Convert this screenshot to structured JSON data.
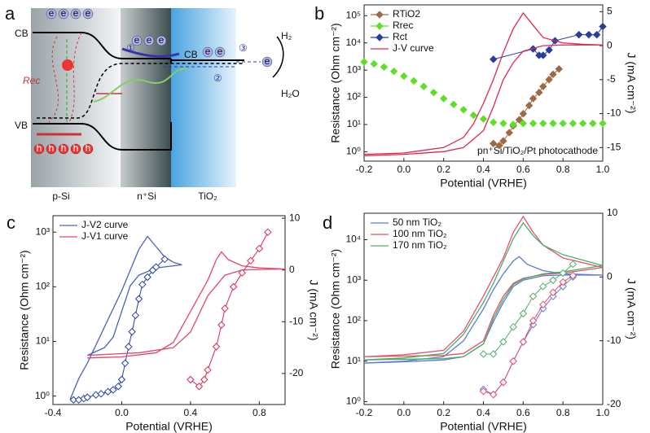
{
  "panel_a": {
    "letter": "a",
    "cb": "CB",
    "vb": "VB",
    "cb_tio2": "CB",
    "rec": "Rec",
    "h2": "H₂",
    "h2o": "H₂O",
    "layers": [
      "p-Si",
      "n⁺Si",
      "TiO₂"
    ],
    "steps": [
      "①",
      "②",
      "③"
    ],
    "electron": "e",
    "hole": "h"
  },
  "chart_data": [
    {
      "type": "line",
      "panel": "b",
      "xlabel": "Potential (VRHE)",
      "ylabel": "Resistance (Ohm cm⁻²)",
      "y2label": "J (mA cm⁻²)",
      "annotation": "pn⁺Si/TiO₂/Pt photocathode",
      "ylog": true,
      "filled_markers": true,
      "xlim": [
        -0.2,
        1.0
      ],
      "xticks": [
        -0.2,
        {
          "value": 0,
          "label": "0.0"
        },
        0.2,
        0.4,
        0.6,
        0.8,
        {
          "value": 1,
          "label": "1.0"
        }
      ],
      "ylim": [
        0.45,
        250000
      ],
      "yticks": [
        {
          "value": 1,
          "label": "10⁰"
        },
        {
          "value": 10,
          "label": "10¹"
        },
        {
          "value": 100,
          "label": "10²"
        },
        {
          "value": 1000,
          "label": "10³"
        },
        {
          "value": 10000,
          "label": "10⁴"
        },
        {
          "value": 100000,
          "label": "10⁵"
        }
      ],
      "y2lim": [
        -17,
        6
      ],
      "y2ticks": [
        5,
        0,
        -5,
        -10,
        -15
      ],
      "series": [
        {
          "name": "RTiO2",
          "color": "#9c6b45",
          "marker": "diamond",
          "x": [
            0.45,
            0.48,
            0.5,
            0.53,
            0.55,
            0.58,
            0.6,
            0.63,
            0.65,
            0.68,
            0.7,
            0.73,
            0.75,
            0.78
          ],
          "values": [
            2,
            1.7,
            2.5,
            5,
            9,
            15,
            25,
            50,
            90,
            150,
            250,
            450,
            700,
            1100
          ]
        },
        {
          "name": "Rrec",
          "color": "#5ee02a",
          "marker": "diamond",
          "line": false,
          "x": [
            -0.2,
            -0.15,
            -0.1,
            -0.05,
            0,
            0.05,
            0.1,
            0.15,
            0.2,
            0.25,
            0.3,
            0.35,
            0.4,
            0.45,
            0.5,
            0.55,
            0.6,
            0.65,
            0.7,
            0.75,
            0.8,
            0.85,
            0.9,
            0.95,
            1.0
          ],
          "values": [
            2000,
            1700,
            1300,
            900,
            600,
            400,
            250,
            150,
            90,
            55,
            35,
            22,
            16,
            12,
            11,
            10,
            11,
            11,
            11,
            11,
            11,
            11,
            11,
            11,
            11
          ]
        },
        {
          "name": "Rct",
          "color": "#2b3d9c",
          "marker": "diamond",
          "x": [
            0.45,
            0.65,
            0.68,
            0.7,
            0.73,
            0.76,
            0.88,
            0.93,
            0.97,
            1.0
          ],
          "values": [
            2500,
            6000,
            3500,
            3500,
            5500,
            12000,
            20000,
            20000,
            20000,
            40000
          ]
        },
        {
          "name": "J-V curve",
          "color": "#e0284f",
          "axis": "y2",
          "x": [
            -0.2,
            0,
            0.2,
            0.3,
            0.35,
            0.4,
            0.45,
            0.5,
            0.55,
            0.6,
            0.65,
            0.7,
            0.8,
            0.9,
            1.0,
            0.9,
            0.8,
            0.7,
            0.6,
            0.55,
            0.5,
            0.45,
            0.4,
            0.3,
            0.2,
            0,
            -0.2
          ],
          "values": [
            -16,
            -15.8,
            -15,
            -13.5,
            -11.5,
            -8.5,
            -5,
            -1,
            2.5,
            4.8,
            3,
            1.2,
            0.4,
            0.2,
            0.1,
            0.1,
            0.1,
            0,
            -0.8,
            -2.5,
            -5,
            -9,
            -12.5,
            -15,
            -15.6,
            -16,
            -16.2
          ]
        }
      ]
    },
    {
      "type": "line",
      "panel": "c",
      "xlabel": "Potential (VRHE)",
      "ylabel": "Resistance (Ohm cm⁻²)",
      "y2label": "J (mA cm⁻²)",
      "ylog": true,
      "xlim": [
        -0.4,
        0.95
      ],
      "xticks": [
        -0.4,
        {
          "value": 0,
          "label": "0.0"
        },
        0.4,
        0.8
      ],
      "ylim": [
        0.7,
        2000
      ],
      "yticks": [
        {
          "value": 1,
          "label": "10⁰"
        },
        {
          "value": 10,
          "label": "10¹"
        },
        {
          "value": 100,
          "label": "10²"
        },
        {
          "value": 1000,
          "label": "10³"
        }
      ],
      "y2lim": [
        -26,
        10.5
      ],
      "y2ticks": [
        10,
        0,
        -10,
        -20
      ],
      "series": [
        {
          "name": "J-V2 curve",
          "color": "#4a63b8",
          "axis": "y2",
          "x": [
            -0.3,
            -0.25,
            -0.2,
            -0.1,
            0,
            0.05,
            0.1,
            0.15,
            0.2,
            0.25,
            0.3,
            0.35,
            0.3,
            0.2,
            0.1,
            0.05,
            0,
            -0.05,
            -0.1,
            -0.2
          ],
          "values": [
            -25,
            -21,
            -18,
            -11,
            -4,
            0,
            4,
            6.5,
            4.5,
            2.5,
            1.5,
            1,
            0.8,
            0.4,
            -1,
            -3,
            -8,
            -13,
            -15,
            -16.5
          ]
        },
        {
          "color": "#24409a",
          "marker": "diamond",
          "x": [
            -0.28,
            -0.25,
            -0.22,
            -0.2,
            -0.15,
            -0.12,
            -0.08,
            -0.05,
            -0.02,
            0,
            0.02,
            0.04,
            0.06,
            0.08,
            0.1,
            0.12,
            0.15,
            0.18,
            0.2,
            0.25
          ],
          "values": [
            0.85,
            0.85,
            0.9,
            0.95,
            1.05,
            1.1,
            1.2,
            1.3,
            1.5,
            2,
            4,
            8,
            15,
            30,
            60,
            110,
            150,
            200,
            230,
            320
          ]
        },
        {
          "name": "J-V1 curve",
          "color": "#e8456a",
          "axis": "y2",
          "x": [
            -0.2,
            0,
            0.2,
            0.3,
            0.4,
            0.5,
            0.55,
            0.58,
            0.62,
            0.7,
            0.8,
            0.95,
            0.8,
            0.7,
            0.6,
            0.5,
            0.4,
            0.3,
            0.1,
            -0.2
          ],
          "values": [
            -17,
            -16.8,
            -16,
            -14,
            -8,
            -2,
            2,
            3.5,
            2,
            0.8,
            0.4,
            0.2,
            0.1,
            0,
            -1,
            -5,
            -12,
            -15,
            -16,
            -16.5
          ]
        },
        {
          "color": "#e0284f",
          "marker": "diamond",
          "x": [
            0.4,
            0.45,
            0.48,
            0.5,
            0.55,
            0.58,
            0.6,
            0.65,
            0.7,
            0.75,
            0.8,
            0.85
          ],
          "values": [
            2,
            1.5,
            2,
            3,
            8,
            20,
            40,
            100,
            180,
            300,
            500,
            1000
          ]
        }
      ]
    },
    {
      "type": "line",
      "panel": "d",
      "xlabel": "Potential (VRHE)",
      "ylabel": "Resistance (Ohm cm⁻²)",
      "y2label": "J (mA cm⁻²)",
      "ylog": true,
      "xlim": [
        -0.2,
        1.0
      ],
      "xticks": [
        -0.2,
        {
          "value": 0,
          "label": "0.0"
        },
        0.2,
        0.4,
        0.6,
        0.8,
        {
          "value": 1,
          "label": "1.0"
        }
      ],
      "ylim": [
        0.85,
        45000
      ],
      "yticks": [
        {
          "value": 1,
          "label": "10⁰"
        },
        {
          "value": 10,
          "label": "10¹"
        },
        {
          "value": 100,
          "label": "10²"
        },
        {
          "value": 1000,
          "label": "10³"
        },
        {
          "value": 10000,
          "label": "10⁴"
        }
      ],
      "y2lim": [
        -20,
        10
      ],
      "y2ticks": [
        10,
        0,
        -10,
        -20
      ],
      "series": [
        {
          "name": "50 nm TiO₂",
          "color": "#5b7bd5",
          "axis": "y2",
          "x": [
            -0.2,
            0,
            0.2,
            0.3,
            0.4,
            0.45,
            0.5,
            0.55,
            0.58,
            0.62,
            0.7,
            0.8,
            1.0,
            0.8,
            0.7,
            0.6,
            0.55,
            0.5,
            0.45,
            0.4,
            0.3,
            0.2,
            0,
            -0.2
          ],
          "values": [
            -13.5,
            -13.2,
            -12.5,
            -10,
            -5,
            -2,
            0.5,
            2.5,
            3.2,
            2,
            1,
            0.5,
            0.3,
            0.3,
            0.2,
            -0.5,
            -1.5,
            -4,
            -7,
            -10.5,
            -12.5,
            -13,
            -13.3,
            -13.5
          ]
        },
        {
          "name": "100 nm TiO₂",
          "color": "#e8506e",
          "axis": "y2",
          "x": [
            -0.2,
            0,
            0.2,
            0.3,
            0.4,
            0.45,
            0.5,
            0.55,
            0.6,
            0.65,
            0.7,
            0.8,
            1.0,
            0.8,
            0.7,
            0.6,
            0.55,
            0.5,
            0.45,
            0.4,
            0.3,
            0.2,
            0,
            -0.2
          ],
          "values": [
            -12.5,
            -12.2,
            -11.5,
            -8.5,
            -3,
            0,
            3,
            7,
            9.5,
            7,
            5,
            3,
            1.5,
            0.6,
            0.4,
            -0.2,
            -1,
            -3,
            -6,
            -10,
            -12,
            -12.3,
            -12.4,
            -12.5
          ]
        },
        {
          "name": "170 nm TiO₂",
          "color": "#4caf63",
          "axis": "y2",
          "x": [
            -0.2,
            0,
            0.2,
            0.3,
            0.4,
            0.45,
            0.5,
            0.55,
            0.6,
            0.65,
            0.7,
            0.8,
            1.0,
            0.8,
            0.7,
            0.6,
            0.55,
            0.5,
            0.45,
            0.4,
            0.3,
            0.2,
            0,
            -0.2
          ],
          "values": [
            -13,
            -12.7,
            -12,
            -9,
            -4,
            -1,
            2.5,
            6,
            8.5,
            6.5,
            5,
            3.5,
            1.8,
            0.8,
            0.5,
            -0.3,
            -1.2,
            -3.5,
            -6.5,
            -10.5,
            -12.5,
            -12.8,
            -12.9,
            -13
          ]
        },
        {
          "color": "#5b7bd5",
          "marker": "diamond",
          "x": [
            0.4,
            0.45,
            0.5,
            0.55,
            0.6,
            0.65,
            0.7,
            0.75,
            0.8,
            0.85
          ],
          "values": [
            2,
            1.5,
            3,
            10,
            30,
            80,
            200,
            400,
            700,
            1200
          ]
        },
        {
          "color": "#e8506e",
          "marker": "diamond",
          "x": [
            0.4,
            0.45,
            0.5,
            0.55,
            0.6,
            0.65,
            0.7,
            0.75,
            0.8,
            0.85
          ],
          "values": [
            1.8,
            1.5,
            3,
            10,
            30,
            100,
            250,
            500,
            900,
            1300
          ]
        },
        {
          "color": "#4caf63",
          "marker": "diamond",
          "x": [
            0.4,
            0.45,
            0.5,
            0.55,
            0.6,
            0.65,
            0.7,
            0.75,
            0.8,
            0.85
          ],
          "values": [
            15,
            15,
            30,
            70,
            150,
            400,
            700,
            1000,
            1500,
            2500
          ]
        }
      ]
    }
  ]
}
